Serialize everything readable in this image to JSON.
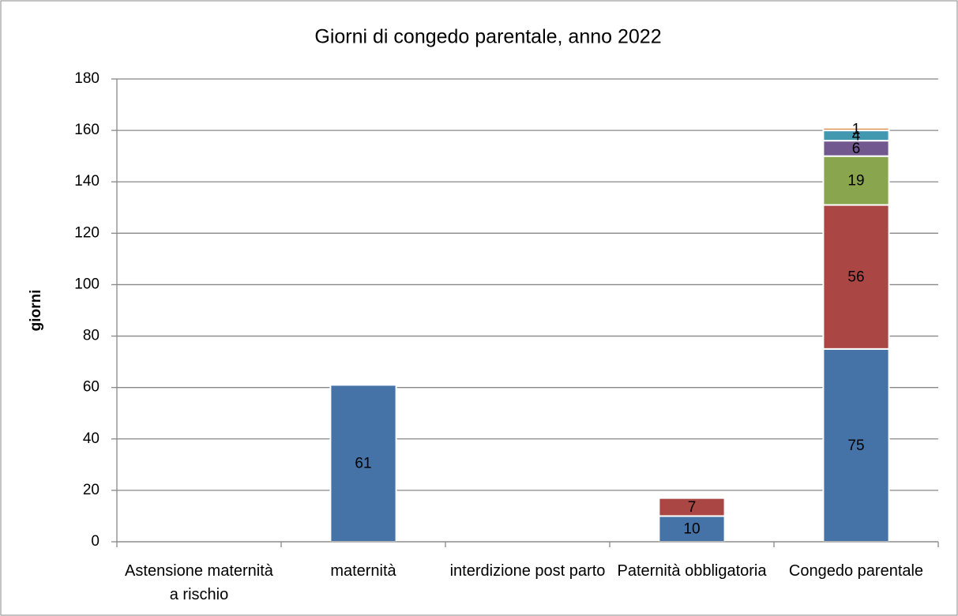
{
  "chart_data": {
    "type": "bar",
    "stacked": true,
    "title": "Giorni di congedo parentale, anno 2022",
    "y_label": "giorni",
    "categories": [
      "Astensione maternità a rischio",
      "maternità",
      "interdizione post parto",
      "Paternità obbligatoria",
      "Congedo parentale"
    ],
    "series": [
      {
        "color": "#4572a7",
        "values": [
          null,
          61,
          null,
          10,
          75
        ]
      },
      {
        "color": "#aa4643",
        "values": [
          null,
          null,
          null,
          7,
          56
        ]
      },
      {
        "color": "#89a54e",
        "values": [
          null,
          null,
          null,
          null,
          19
        ]
      },
      {
        "color": "#71588f",
        "values": [
          null,
          null,
          null,
          null,
          6
        ]
      },
      {
        "color": "#4198af",
        "values": [
          null,
          null,
          null,
          null,
          4
        ]
      },
      {
        "color": "#db843d",
        "values": [
          null,
          null,
          null,
          null,
          1
        ]
      }
    ],
    "ylim": [
      0,
      180
    ],
    "yticks": [
      0,
      20,
      40,
      60,
      80,
      100,
      120,
      140,
      160,
      180
    ],
    "grid": true
  }
}
